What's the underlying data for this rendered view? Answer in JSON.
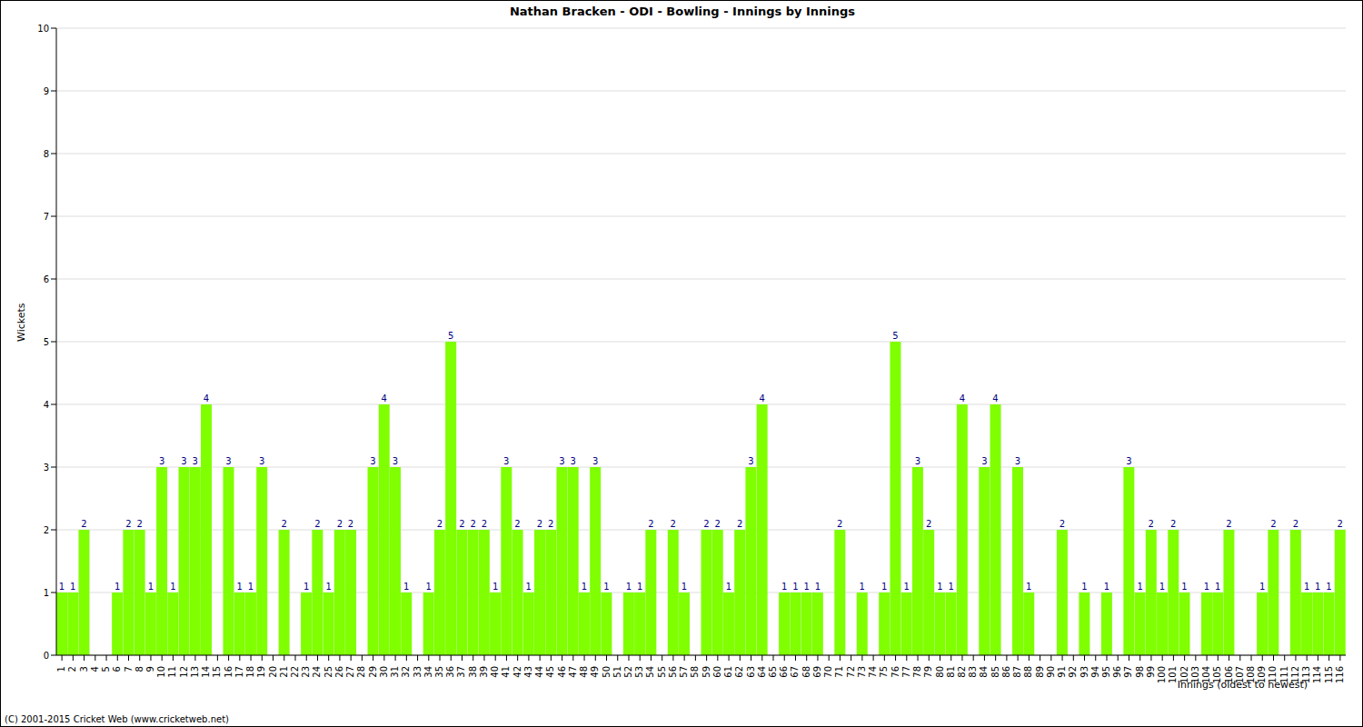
{
  "chart_data": {
    "type": "bar",
    "title": "Nathan Bracken - ODI - Bowling - Innings by Innings",
    "x_label": "Innings (oldest to newest)",
    "y_label": "Wickets",
    "footer": "(C) 2001-2015 Cricket Web (www.cricketweb.net)",
    "categories": [
      "1",
      "2",
      "3",
      "4",
      "5",
      "6",
      "7",
      "8",
      "9",
      "10",
      "11",
      "12",
      "13",
      "14",
      "15",
      "16",
      "17",
      "18",
      "19",
      "20",
      "21",
      "22",
      "23",
      "24",
      "25",
      "26",
      "27",
      "28",
      "29",
      "30",
      "31",
      "32",
      "33",
      "34",
      "35",
      "36",
      "37",
      "38",
      "39",
      "40",
      "41",
      "42",
      "43",
      "44",
      "45",
      "46",
      "47",
      "48",
      "49",
      "50",
      "51",
      "52",
      "53",
      "54",
      "55",
      "56",
      "57",
      "58",
      "59",
      "60",
      "61",
      "62",
      "63",
      "64",
      "65",
      "66",
      "67",
      "68",
      "69",
      "70",
      "71",
      "72",
      "73",
      "74",
      "75",
      "76",
      "77",
      "78",
      "79",
      "80",
      "81",
      "82",
      "83",
      "84",
      "85",
      "86",
      "87",
      "88",
      "89",
      "90",
      "91",
      "92",
      "93",
      "94",
      "95",
      "96",
      "97",
      "98",
      "99",
      "100",
      "101",
      "102",
      "103",
      "104",
      "105",
      "106",
      "107",
      "108",
      "109",
      "110",
      "111",
      "112",
      "113",
      "114",
      "115",
      "116"
    ],
    "values": [
      1,
      1,
      2,
      0,
      0,
      1,
      2,
      2,
      1,
      3,
      1,
      3,
      3,
      4,
      0,
      3,
      1,
      1,
      3,
      0,
      2,
      0,
      1,
      2,
      1,
      2,
      2,
      0,
      3,
      4,
      3,
      1,
      0,
      1,
      2,
      5,
      2,
      2,
      2,
      1,
      3,
      2,
      1,
      2,
      2,
      3,
      3,
      1,
      3,
      1,
      0,
      1,
      1,
      2,
      0,
      2,
      1,
      0,
      2,
      2,
      1,
      2,
      3,
      4,
      0,
      1,
      1,
      1,
      1,
      0,
      2,
      0,
      1,
      0,
      1,
      5,
      1,
      3,
      2,
      1,
      1,
      4,
      0,
      3,
      4,
      0,
      3,
      1,
      0,
      0,
      2,
      0,
      1,
      0,
      1,
      0,
      3,
      1,
      2,
      1,
      2,
      1,
      0,
      1,
      1,
      2,
      0,
      0,
      1,
      2,
      0,
      2,
      1,
      1,
      1,
      2
    ],
    "color": "#7fff00",
    "ylim": [
      0,
      10
    ],
    "yticks": [
      0,
      1,
      2,
      3,
      4,
      5,
      6,
      7,
      8,
      9,
      10
    ],
    "grid": true,
    "data_labels": true
  }
}
